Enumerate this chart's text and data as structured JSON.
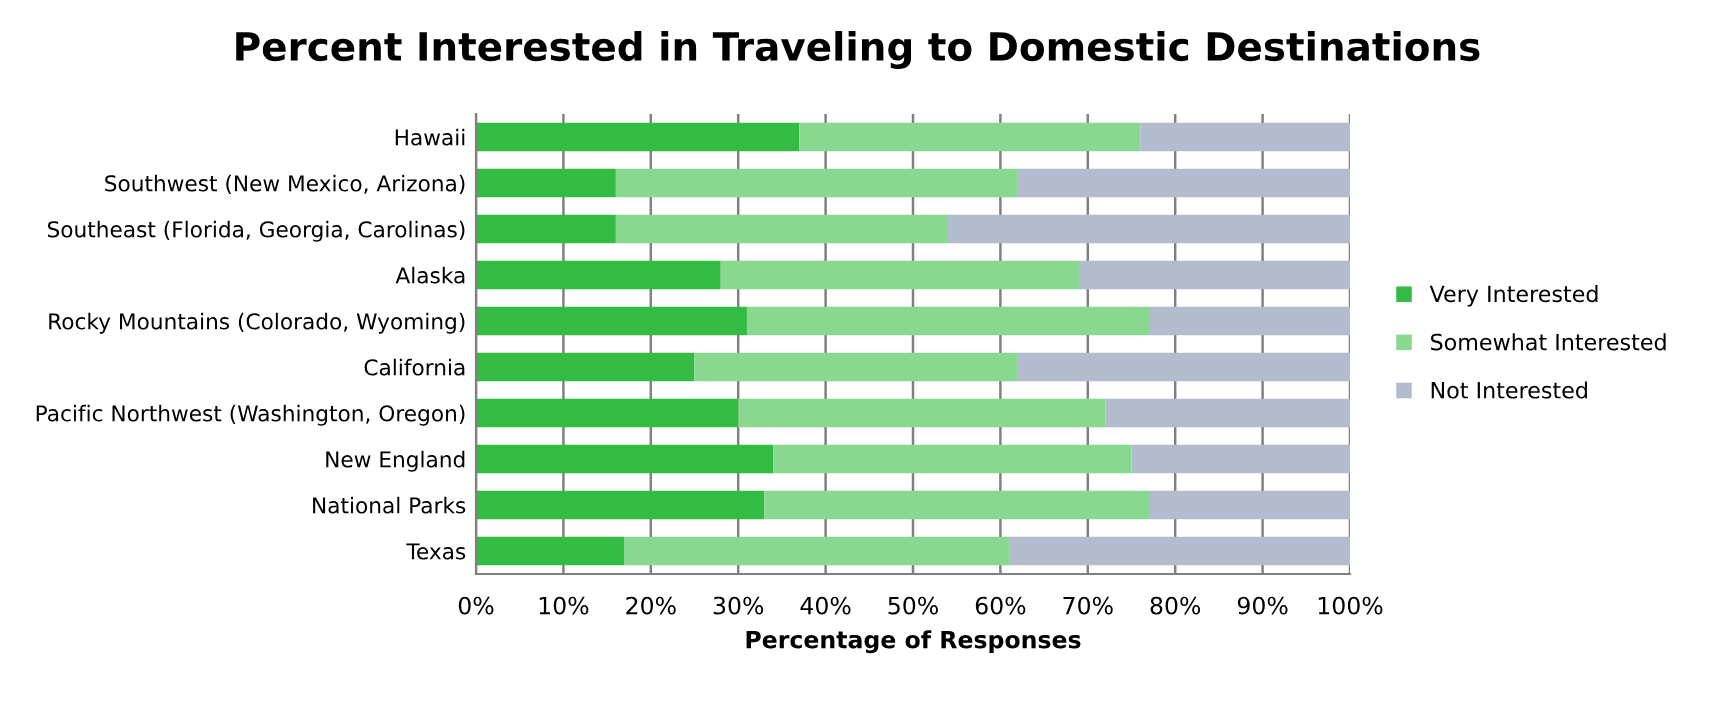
{
  "chart_data": {
    "type": "bar",
    "orientation": "horizontal",
    "stacked": true,
    "title": "Percent Interested in Traveling to Domestic Destinations",
    "xlabel": "Percentage of Responses",
    "categories": [
      "Hawaii",
      "Southwest (New Mexico, Arizona)",
      "Southeast (Florida, Georgia, Carolinas)",
      "Alaska",
      "Rocky Mountains (Colorado, Wyoming)",
      "California",
      "Pacific Northwest (Washington, Oregon)",
      "New England",
      "National Parks",
      "Texas"
    ],
    "series": [
      {
        "name": "Very Interested",
        "color": "#33bb44",
        "values": [
          37,
          16,
          16,
          28,
          31,
          25,
          30,
          34,
          33,
          17
        ]
      },
      {
        "name": "Somewhat Interested",
        "color": "#88d890",
        "values": [
          39,
          46,
          38,
          41,
          46,
          37,
          42,
          41,
          44,
          44
        ]
      },
      {
        "name": "Not Interested",
        "color": "#b3bccd",
        "values": [
          24,
          38,
          46,
          31,
          23,
          38,
          28,
          25,
          23,
          39
        ]
      }
    ],
    "xlim": [
      0,
      100
    ],
    "xticks": [
      {
        "value": 0,
        "label": "0%"
      },
      {
        "value": 10,
        "label": "10%"
      },
      {
        "value": 20,
        "label": "20%"
      },
      {
        "value": 30,
        "label": "30%"
      },
      {
        "value": 40,
        "label": "40%"
      },
      {
        "value": 50,
        "label": "50%"
      },
      {
        "value": 60,
        "label": "60%"
      },
      {
        "value": 70,
        "label": "70%"
      },
      {
        "value": 80,
        "label": "80%"
      },
      {
        "value": 90,
        "label": "90%"
      },
      {
        "value": 100,
        "label": "100%"
      }
    ],
    "grid": "x",
    "legend": "right"
  }
}
